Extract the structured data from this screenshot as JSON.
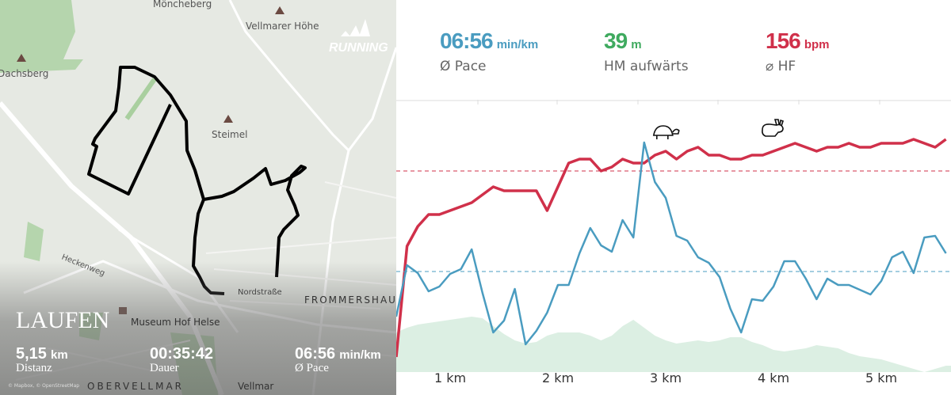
{
  "map": {
    "labels": [
      "Möncheberg",
      "Vellmarer Höhe",
      "Dachsberg",
      "Steimel",
      "Heckenweg",
      "Nordstraße",
      "FROMMERSHAU",
      "Museum Hof Helse",
      "OBERVELLMAR",
      "Vellmar"
    ],
    "brand": "RUNNING",
    "attribution": "© Mapbox, © OpenStreetMap",
    "activity_title": "LAUFEN",
    "stats": [
      {
        "value": "5,15",
        "unit": "km",
        "label": "Distanz"
      },
      {
        "value": "00:35:42",
        "unit": "",
        "label": "Dauer"
      },
      {
        "value": "06:56",
        "unit": "min/km",
        "label": "Ø Pace"
      }
    ]
  },
  "summary": [
    {
      "value": "06:56",
      "unit": "min/km",
      "label": "Ø Pace",
      "color": "#4a9cc0"
    },
    {
      "value": "39",
      "unit": "m",
      "label": "HM aufwärts",
      "color": "#3faa5f"
    },
    {
      "value": "156",
      "unit": "bpm",
      "label": "⌀ HF",
      "color": "#d0304a"
    }
  ],
  "chart_data": {
    "type": "line",
    "x_ticks": [
      "1 km",
      "2 km",
      "3 km",
      "4 km",
      "5 km"
    ],
    "x_tick_values": [
      1,
      2,
      3,
      4,
      5
    ],
    "xlim": [
      0.5,
      5.65
    ],
    "icons": {
      "slowest": "turtle-icon",
      "fastest": "rabbit-icon"
    },
    "x": [
      0.5,
      0.6,
      0.7,
      0.8,
      0.9,
      1.0,
      1.1,
      1.2,
      1.3,
      1.4,
      1.5,
      1.6,
      1.7,
      1.8,
      1.9,
      2.0,
      2.1,
      2.2,
      2.3,
      2.4,
      2.5,
      2.6,
      2.7,
      2.8,
      2.9,
      3.0,
      3.1,
      3.2,
      3.3,
      3.4,
      3.5,
      3.6,
      3.7,
      3.8,
      3.9,
      4.0,
      4.1,
      4.2,
      4.3,
      4.4,
      4.5,
      4.6,
      4.7,
      4.8,
      4.9,
      5.0,
      5.1,
      5.2,
      5.3,
      5.4,
      5.5,
      5.6
    ],
    "series": [
      {
        "key": "heart_rate",
        "unit": "bpm",
        "color": "#d0304a",
        "average": 156,
        "values": [
          109,
          137,
          142,
          145,
          145,
          146,
          147,
          148,
          150,
          152,
          151,
          151,
          151,
          151,
          146,
          152,
          158,
          159,
          159,
          156,
          157,
          159,
          158,
          158,
          160,
          161,
          159,
          161,
          162,
          160,
          160,
          159,
          159,
          160,
          160,
          161,
          162,
          163,
          162,
          161,
          162,
          162,
          163,
          162,
          162,
          163,
          163,
          163,
          164,
          163,
          162,
          164
        ]
      },
      {
        "key": "pace",
        "unit": "s/km",
        "color": "#4a9cc0",
        "average": 416,
        "values": [
          473,
          408,
          418,
          441,
          435,
          419,
          413,
          388,
          443,
          493,
          478,
          438,
          508,
          491,
          468,
          433,
          433,
          393,
          361,
          383,
          391,
          351,
          373,
          253,
          303,
          323,
          371,
          377,
          398,
          405,
          423,
          463,
          493,
          451,
          453,
          435,
          403,
          403,
          425,
          451,
          425,
          433,
          433,
          439,
          445,
          428,
          398,
          391,
          418,
          373,
          371,
          393
        ]
      },
      {
        "key": "elevation",
        "unit": "m",
        "color": "#dcefe3",
        "values": [
          225,
          228,
          230,
          231,
          232,
          233,
          234,
          235,
          234,
          229,
          224,
          220,
          218,
          219,
          223,
          225,
          225,
          225,
          223,
          220,
          223,
          229,
          233,
          228,
          223,
          220,
          218,
          219,
          220,
          219,
          220,
          222,
          222,
          219,
          217,
          214,
          213,
          214,
          215,
          217,
          216,
          215,
          212,
          210,
          209,
          208,
          206,
          204,
          202,
          200,
          202,
          204
        ]
      }
    ]
  }
}
